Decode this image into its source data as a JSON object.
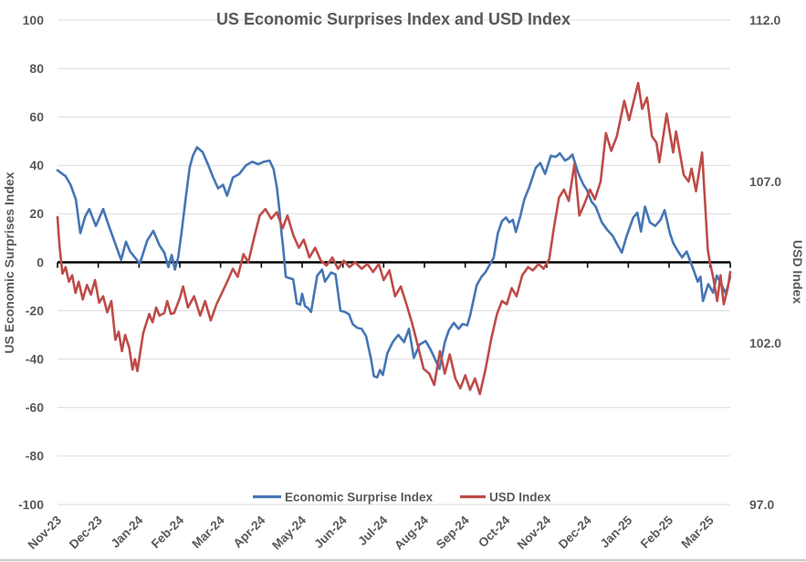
{
  "title": "US Economic Surprises Index and USD Index",
  "axes": {
    "left_title": "US Economic Surprises Index",
    "right_title": "USD Index"
  },
  "legend": {
    "items": [
      {
        "label": "Economic Surprise Index",
        "color": "#4575B4"
      },
      {
        "label": "USD Index",
        "color": "#BE4B48"
      }
    ]
  },
  "colors": {
    "text_gray": "#595959",
    "gridline": "#DBDBDB",
    "zero_axis": "#000000",
    "background": "#FFFFFF",
    "series_blue": "#4575B4",
    "series_red": "#BE4B48"
  },
  "chart_data": {
    "type": "line",
    "title": "US Economic Surprises Index and USD Index",
    "x_unit": "months from Nov-2023 tick (0 = Nov-23, 1 = Dec-23, ... 16 = Mar-25)",
    "x_tick_labels": [
      "Nov-23",
      "Dec-23",
      "Jan-24",
      "Feb-24",
      "Mar-24",
      "Apr-24",
      "May-24",
      "Jun-24",
      "Jul-24",
      "Aug-24",
      "Sep-24",
      "Oct-24",
      "Nov-24",
      "Dec-24",
      "Jan-25",
      "Feb-25",
      "Mar-25"
    ],
    "grid": "horizontal",
    "legend_position": "bottom-center",
    "left_axis": {
      "label": "US Economic Surprises Index",
      "min": -100,
      "max": 100,
      "tick_step": 20,
      "ticks": [
        100,
        80,
        60,
        40,
        20,
        0,
        -20,
        -40,
        -60,
        -80,
        -100
      ]
    },
    "right_axis": {
      "label": "USD Index",
      "min": 97,
      "max": 112,
      "ticks": [
        112,
        107,
        102,
        97
      ],
      "tick_labels": [
        "112.0",
        "107.0",
        "102.0",
        "97.0"
      ]
    },
    "series": [
      {
        "name": "Economic Surprise Index",
        "axis": "left",
        "color": "#4575B4",
        "points": [
          [
            0,
            38
          ],
          [
            0.08,
            37
          ],
          [
            0.2,
            35.5
          ],
          [
            0.32,
            32
          ],
          [
            0.45,
            26
          ],
          [
            0.56,
            12
          ],
          [
            0.68,
            19
          ],
          [
            0.78,
            22
          ],
          [
            0.94,
            15
          ],
          [
            1.12,
            22
          ],
          [
            1.26,
            15
          ],
          [
            1.4,
            8.5
          ],
          [
            1.56,
            1
          ],
          [
            1.68,
            8.5
          ],
          [
            1.78,
            4.5
          ],
          [
            1.92,
            1.5
          ],
          [
            2.02,
            -0.5
          ],
          [
            2.2,
            9
          ],
          [
            2.35,
            13
          ],
          [
            2.5,
            7
          ],
          [
            2.62,
            4
          ],
          [
            2.72,
            -2
          ],
          [
            2.8,
            3
          ],
          [
            2.88,
            -3
          ],
          [
            2.96,
            2
          ],
          [
            3.04,
            12
          ],
          [
            3.14,
            26
          ],
          [
            3.24,
            39
          ],
          [
            3.32,
            44
          ],
          [
            3.42,
            47.5
          ],
          [
            3.56,
            45.5
          ],
          [
            3.7,
            40
          ],
          [
            3.82,
            35
          ],
          [
            3.94,
            30.5
          ],
          [
            4.06,
            32
          ],
          [
            4.16,
            27.5
          ],
          [
            4.3,
            35
          ],
          [
            4.46,
            36.5
          ],
          [
            4.62,
            40
          ],
          [
            4.78,
            41.5
          ],
          [
            4.92,
            40.5
          ],
          [
            5.06,
            41.5
          ],
          [
            5.2,
            42
          ],
          [
            5.3,
            38.5
          ],
          [
            5.38,
            31
          ],
          [
            5.44,
            22
          ],
          [
            5.5,
            11
          ],
          [
            5.54,
            5
          ],
          [
            5.6,
            -6
          ],
          [
            5.68,
            -6.5
          ],
          [
            5.78,
            -7
          ],
          [
            5.87,
            -17
          ],
          [
            5.95,
            -17.5
          ],
          [
            6.0,
            -13
          ],
          [
            6.07,
            -18
          ],
          [
            6.15,
            -19
          ],
          [
            6.22,
            -20.5
          ],
          [
            6.37,
            -5.5
          ],
          [
            6.49,
            -3
          ],
          [
            6.56,
            -8
          ],
          [
            6.71,
            -4.2
          ],
          [
            6.82,
            -5
          ],
          [
            6.94,
            -20
          ],
          [
            7.05,
            -20.5
          ],
          [
            7.15,
            -21.5
          ],
          [
            7.24,
            -25.5
          ],
          [
            7.35,
            -27
          ],
          [
            7.46,
            -27.5
          ],
          [
            7.57,
            -30.5
          ],
          [
            7.69,
            -40
          ],
          [
            7.76,
            -47
          ],
          [
            7.84,
            -47.5
          ],
          [
            7.91,
            -44.5
          ],
          [
            7.98,
            -46.5
          ],
          [
            8.09,
            -37.5
          ],
          [
            8.22,
            -33
          ],
          [
            8.36,
            -30
          ],
          [
            8.5,
            -33
          ],
          [
            8.62,
            -27.5
          ],
          [
            8.74,
            -39.5
          ],
          [
            8.88,
            -34
          ],
          [
            9.03,
            -32.5
          ],
          [
            9.15,
            -36
          ],
          [
            9.26,
            -40
          ],
          [
            9.37,
            -44
          ],
          [
            9.5,
            -33
          ],
          [
            9.6,
            -28
          ],
          [
            9.72,
            -25
          ],
          [
            9.84,
            -27.5
          ],
          [
            9.93,
            -25.5
          ],
          [
            10.05,
            -26
          ],
          [
            10.12,
            -22
          ],
          [
            10.19,
            -16.5
          ],
          [
            10.28,
            -9.5
          ],
          [
            10.4,
            -6
          ],
          [
            10.5,
            -4
          ],
          [
            10.6,
            -1
          ],
          [
            10.7,
            2
          ],
          [
            10.8,
            12
          ],
          [
            10.9,
            17
          ],
          [
            11.0,
            18.5
          ],
          [
            11.08,
            16.5
          ],
          [
            11.17,
            17.5
          ],
          [
            11.24,
            12.5
          ],
          [
            11.35,
            19
          ],
          [
            11.45,
            26
          ],
          [
            11.57,
            31
          ],
          [
            11.73,
            39
          ],
          [
            11.84,
            41
          ],
          [
            11.96,
            36.5
          ],
          [
            12.1,
            44
          ],
          [
            12.22,
            43.5
          ],
          [
            12.32,
            45
          ],
          [
            12.45,
            42
          ],
          [
            12.55,
            43
          ],
          [
            12.63,
            44.5
          ],
          [
            12.78,
            36.5
          ],
          [
            12.9,
            32
          ],
          [
            12.98,
            30
          ],
          [
            13.1,
            25
          ],
          [
            13.2,
            23
          ],
          [
            13.35,
            16.5
          ],
          [
            13.48,
            13.5
          ],
          [
            13.62,
            10.8
          ],
          [
            13.74,
            7
          ],
          [
            13.84,
            4
          ],
          [
            13.96,
            10.8
          ],
          [
            14.12,
            18.4
          ],
          [
            14.22,
            20.5
          ],
          [
            14.31,
            12.7
          ],
          [
            14.41,
            23
          ],
          [
            14.53,
            16.5
          ],
          [
            14.66,
            15
          ],
          [
            14.79,
            17.5
          ],
          [
            14.89,
            21.5
          ],
          [
            15.02,
            12
          ],
          [
            15.1,
            8
          ],
          [
            15.22,
            4.5
          ],
          [
            15.32,
            2
          ],
          [
            15.43,
            4.5
          ],
          [
            15.53,
            0
          ],
          [
            15.63,
            -4.5
          ],
          [
            15.7,
            -8
          ],
          [
            15.77,
            -6
          ],
          [
            15.83,
            -16
          ],
          [
            15.96,
            -9
          ],
          [
            16.08,
            -12.5
          ],
          [
            16.17,
            -5.5
          ],
          [
            16.27,
            -8.5
          ],
          [
            16.39,
            -13
          ],
          [
            16.5,
            -6
          ]
        ]
      },
      {
        "name": "USD Index",
        "axis": "right",
        "color": "#BE4B48",
        "points": [
          [
            0,
            105.9
          ],
          [
            0.05,
            105.0
          ],
          [
            0.12,
            104.15
          ],
          [
            0.2,
            104.35
          ],
          [
            0.28,
            103.9
          ],
          [
            0.36,
            104.1
          ],
          [
            0.44,
            103.55
          ],
          [
            0.52,
            103.9
          ],
          [
            0.62,
            103.35
          ],
          [
            0.72,
            103.8
          ],
          [
            0.82,
            103.5
          ],
          [
            0.92,
            103.95
          ],
          [
            1.02,
            103.25
          ],
          [
            1.12,
            103.45
          ],
          [
            1.22,
            102.95
          ],
          [
            1.32,
            103.3
          ],
          [
            1.42,
            102.1
          ],
          [
            1.5,
            102.35
          ],
          [
            1.58,
            101.75
          ],
          [
            1.66,
            102.25
          ],
          [
            1.76,
            101.85
          ],
          [
            1.84,
            101.18
          ],
          [
            1.9,
            101.5
          ],
          [
            1.96,
            101.13
          ],
          [
            2.1,
            102.3
          ],
          [
            2.25,
            102.9
          ],
          [
            2.33,
            102.64
          ],
          [
            2.42,
            103.1
          ],
          [
            2.5,
            102.85
          ],
          [
            2.62,
            102.93
          ],
          [
            2.69,
            103.3
          ],
          [
            2.78,
            102.9
          ],
          [
            2.86,
            102.93
          ],
          [
            3.0,
            103.39
          ],
          [
            3.08,
            103.75
          ],
          [
            3.2,
            103.1
          ],
          [
            3.35,
            103.45
          ],
          [
            3.5,
            102.85
          ],
          [
            3.62,
            103.3
          ],
          [
            3.76,
            102.7
          ],
          [
            3.9,
            103.2
          ],
          [
            4.05,
            103.6
          ],
          [
            4.18,
            103.95
          ],
          [
            4.3,
            104.3
          ],
          [
            4.42,
            104.05
          ],
          [
            4.56,
            104.75
          ],
          [
            4.68,
            104.5
          ],
          [
            4.82,
            105.25
          ],
          [
            4.96,
            105.95
          ],
          [
            5.1,
            106.15
          ],
          [
            5.24,
            105.85
          ],
          [
            5.38,
            106.05
          ],
          [
            5.52,
            105.55
          ],
          [
            5.64,
            105.95
          ],
          [
            5.78,
            105.35
          ],
          [
            5.92,
            104.95
          ],
          [
            6.04,
            105.2
          ],
          [
            6.18,
            104.65
          ],
          [
            6.32,
            104.95
          ],
          [
            6.46,
            104.55
          ],
          [
            6.6,
            104.4
          ],
          [
            6.74,
            104.65
          ],
          [
            6.88,
            104.3
          ],
          [
            7.02,
            104.55
          ],
          [
            7.16,
            104.35
          ],
          [
            7.3,
            104.5
          ],
          [
            7.46,
            104.3
          ],
          [
            7.6,
            104.45
          ],
          [
            7.74,
            104.2
          ],
          [
            7.88,
            104.45
          ],
          [
            8.0,
            103.95
          ],
          [
            8.14,
            104.25
          ],
          [
            8.28,
            103.45
          ],
          [
            8.42,
            103.75
          ],
          [
            8.56,
            103.2
          ],
          [
            8.7,
            102.6
          ],
          [
            8.84,
            101.9
          ],
          [
            8.98,
            101.2
          ],
          [
            9.12,
            101.05
          ],
          [
            9.24,
            100.7
          ],
          [
            9.38,
            101.75
          ],
          [
            9.5,
            101.05
          ],
          [
            9.62,
            101.65
          ],
          [
            9.76,
            100.9
          ],
          [
            9.88,
            100.6
          ],
          [
            10.0,
            101.0
          ],
          [
            10.12,
            100.55
          ],
          [
            10.24,
            100.9
          ],
          [
            10.36,
            100.42
          ],
          [
            10.5,
            101.2
          ],
          [
            10.64,
            102.15
          ],
          [
            10.78,
            102.9
          ],
          [
            10.9,
            103.3
          ],
          [
            11.02,
            103.2
          ],
          [
            11.14,
            103.7
          ],
          [
            11.26,
            103.45
          ],
          [
            11.4,
            104.1
          ],
          [
            11.54,
            104.35
          ],
          [
            11.66,
            104.25
          ],
          [
            11.8,
            104.45
          ],
          [
            11.92,
            104.3
          ],
          [
            12.06,
            104.6
          ],
          [
            12.18,
            105.6
          ],
          [
            12.3,
            106.5
          ],
          [
            12.42,
            106.75
          ],
          [
            12.54,
            106.4
          ],
          [
            12.68,
            107.55
          ],
          [
            12.8,
            105.95
          ],
          [
            12.92,
            106.3
          ],
          [
            13.06,
            106.75
          ],
          [
            13.18,
            106.45
          ],
          [
            13.32,
            107.0
          ],
          [
            13.45,
            108.5
          ],
          [
            13.58,
            107.95
          ],
          [
            13.72,
            108.4
          ],
          [
            13.9,
            109.5
          ],
          [
            14.02,
            108.9
          ],
          [
            14.24,
            110.05
          ],
          [
            14.34,
            109.25
          ],
          [
            14.46,
            109.6
          ],
          [
            14.58,
            108.4
          ],
          [
            14.69,
            108.2
          ],
          [
            14.76,
            107.6
          ],
          [
            14.94,
            109.1
          ],
          [
            15.1,
            107.9
          ],
          [
            15.17,
            108.55
          ],
          [
            15.36,
            107.2
          ],
          [
            15.48,
            107.0
          ],
          [
            15.55,
            107.4
          ],
          [
            15.66,
            106.7
          ],
          [
            15.81,
            107.9
          ],
          [
            15.95,
            104.9
          ],
          [
            16.0,
            104.5
          ],
          [
            16.08,
            104.05
          ],
          [
            16.18,
            103.3
          ],
          [
            16.26,
            104.1
          ],
          [
            16.34,
            103.2
          ],
          [
            16.44,
            103.7
          ],
          [
            16.5,
            104.2
          ]
        ]
      }
    ]
  }
}
